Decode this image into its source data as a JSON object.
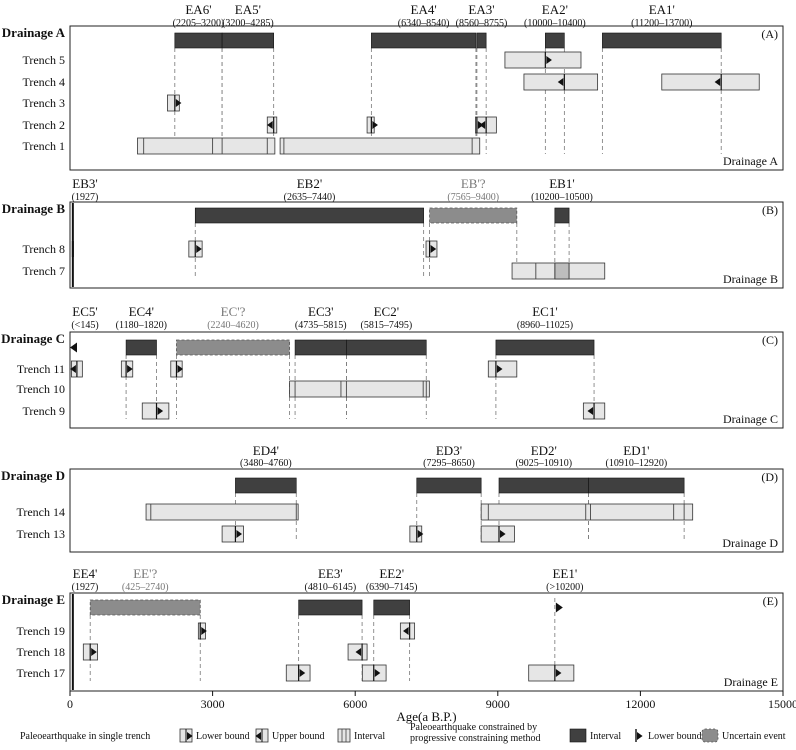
{
  "colors": {
    "interval_fill": "#404040",
    "uncertain_fill": "#8c8c8c",
    "trench_fill": "#e6e6e6",
    "stroke": "#222222",
    "guide": "#777777"
  },
  "chart_data": {
    "type": "timeline",
    "x_axis": {
      "label": "Age(a B.P.)",
      "min": 0,
      "max": 15000,
      "ticks": [
        0,
        3000,
        6000,
        9000,
        12000,
        15000
      ]
    },
    "panels": [
      {
        "id": "A",
        "drainage": "Drainage A",
        "tag": "(A)",
        "corner": "Drainage A",
        "events": [
          {
            "name": "EA6'",
            "range": "(2205–3200)",
            "start": 2205,
            "end": 3200,
            "kind": "interval"
          },
          {
            "name": "EA5'",
            "range": "(3200–4285)",
            "start": 3200,
            "end": 4285,
            "kind": "interval"
          },
          {
            "name": "EA4'",
            "range": "(6340–8540)",
            "start": 6340,
            "end": 8540,
            "kind": "interval"
          },
          {
            "name": "EA3'",
            "range": "(8560–8755)",
            "start": 8560,
            "end": 8755,
            "kind": "interval"
          },
          {
            "name": "EA2'",
            "range": "(10000–10400)",
            "start": 10000,
            "end": 10400,
            "kind": "interval"
          },
          {
            "name": "EA1'",
            "range": "(11200–13700)",
            "start": 11200,
            "end": 13700,
            "kind": "interval"
          }
        ],
        "trenches": [
          {
            "name": "Trench 5",
            "boxes": [
              {
                "start": 9150,
                "end": 10750
              }
            ],
            "marks": [
              {
                "x": 10000,
                "dir": "lower"
              }
            ]
          },
          {
            "name": "Trench 4",
            "boxes": [
              {
                "start": 9550,
                "end": 11100
              },
              {
                "start": 12450,
                "end": 14500
              }
            ],
            "marks": [
              {
                "x": 10400,
                "dir": "upper"
              },
              {
                "x": 13700,
                "dir": "upper"
              }
            ]
          },
          {
            "name": "Trench 3",
            "boxes": [
              {
                "start": 2050,
                "end": 2300
              }
            ],
            "marks": [
              {
                "x": 2205,
                "dir": "lower"
              }
            ]
          },
          {
            "name": "Trench 2",
            "boxes": [
              {
                "start": 4150,
                "end": 4350
              },
              {
                "start": 6250,
                "end": 6400
              },
              {
                "start": 8530,
                "end": 8970
              }
            ],
            "marks": [
              {
                "x": 4285,
                "dir": "upper"
              },
              {
                "x": 6340,
                "dir": "lower"
              },
              {
                "x": 8560,
                "dir": "lower"
              },
              {
                "x": 8755,
                "dir": "upper"
              }
            ]
          },
          {
            "name": "Trench 1",
            "boxes": [
              {
                "start": 1420,
                "end": 4310
              },
              {
                "start": 4420,
                "end": 8620
              }
            ],
            "inner": [
              1550,
              3000,
              3200,
              4150,
              4500,
              8460
            ]
          }
        ]
      },
      {
        "id": "B",
        "drainage": "Drainage B",
        "tag": "(B)",
        "corner": "Drainage B",
        "events": [
          {
            "name": "EB3'",
            "range": "(1927)",
            "start": 60,
            "end": 60,
            "kind": "interval"
          },
          {
            "name": "EB2'",
            "range": "(2635–7440)",
            "start": 2635,
            "end": 7440,
            "kind": "interval"
          },
          {
            "name": "EB'?",
            "range": "(7565–9400)",
            "start": 7565,
            "end": 9400,
            "kind": "uncertain"
          },
          {
            "name": "EB1'",
            "range": "(10200–10500)",
            "start": 10200,
            "end": 10500,
            "kind": "interval"
          }
        ],
        "trenches": [
          {
            "name": "Trench 8",
            "boxes": [
              {
                "start": 2500,
                "end": 2780
              },
              {
                "start": 7490,
                "end": 7720
              }
            ],
            "marks": [
              {
                "x": 2635,
                "dir": "lower"
              },
              {
                "x": 7565,
                "dir": "lower"
              }
            ],
            "ticks": [
              60
            ]
          },
          {
            "name": "Trench 7",
            "boxes": [
              {
                "start": 9300,
                "end": 11250
              }
            ],
            "inner": [
              9800,
              10200,
              10500
            ],
            "shade": [
              10200,
              10500
            ]
          }
        ]
      },
      {
        "id": "C",
        "drainage": "Drainage C",
        "tag": "(C)",
        "corner": "Drainage C",
        "events": [
          {
            "name": "EC5'",
            "range": "(<145)",
            "start": 0,
            "end": 0,
            "kind": "upper-arrow"
          },
          {
            "name": "EC4'",
            "range": "(1180–1820)",
            "start": 1180,
            "end": 1820,
            "kind": "interval"
          },
          {
            "name": "EC'?",
            "range": "(2240–4620)",
            "start": 2240,
            "end": 4620,
            "kind": "uncertain"
          },
          {
            "name": "EC3'",
            "range": "(4735–5815)",
            "start": 4735,
            "end": 5815,
            "kind": "interval"
          },
          {
            "name": "EC2'",
            "range": "(5815–7495)",
            "start": 5815,
            "end": 7495,
            "kind": "interval"
          },
          {
            "name": "EC1'",
            "range": "(8960–11025)",
            "start": 8960,
            "end": 11025,
            "kind": "interval"
          }
        ],
        "trenches": [
          {
            "name": "Trench 11",
            "boxes": [
              {
                "start": 30,
                "end": 260
              },
              {
                "start": 1080,
                "end": 1320
              },
              {
                "start": 2120,
                "end": 2360
              },
              {
                "start": 8800,
                "end": 9400
              }
            ],
            "marks": [
              {
                "x": 145,
                "dir": "upper"
              },
              {
                "x": 1180,
                "dir": "lower"
              },
              {
                "x": 2240,
                "dir": "lower"
              },
              {
                "x": 8960,
                "dir": "lower"
              }
            ]
          },
          {
            "name": "Trench 10",
            "boxes": [
              {
                "start": 4620,
                "end": 7560
              }
            ],
            "inner": [
              4735,
              5700,
              5815,
              7430,
              7495
            ]
          },
          {
            "name": "Trench 9",
            "boxes": [
              {
                "start": 1520,
                "end": 2080
              },
              {
                "start": 10800,
                "end": 11250
              }
            ],
            "marks": [
              {
                "x": 1820,
                "dir": "lower"
              },
              {
                "x": 11025,
                "dir": "upper"
              }
            ]
          }
        ]
      },
      {
        "id": "D",
        "drainage": "Drainage D",
        "tag": "(D)",
        "corner": "Drainage D",
        "events": [
          {
            "name": "ED4'",
            "range": "(3480–4760)",
            "start": 3480,
            "end": 4760,
            "kind": "interval"
          },
          {
            "name": "ED3'",
            "range": "(7295–8650)",
            "start": 7295,
            "end": 8650,
            "kind": "interval"
          },
          {
            "name": "ED2'",
            "range": "(9025–10910)",
            "start": 9025,
            "end": 10910,
            "kind": "interval"
          },
          {
            "name": "ED1'",
            "range": "(10910–12920)",
            "start": 10910,
            "end": 12920,
            "kind": "interval"
          }
        ],
        "trenches": [
          {
            "name": "Trench 14",
            "boxes": [
              {
                "start": 1600,
                "end": 4800
              },
              {
                "start": 8650,
                "end": 13100
              }
            ],
            "inner": [
              1700,
              4760,
              8800,
              10850,
              10950,
              12700,
              12920
            ]
          },
          {
            "name": "Trench 13",
            "boxes": [
              {
                "start": 3200,
                "end": 3650
              },
              {
                "start": 7150,
                "end": 7400
              },
              {
                "start": 8650,
                "end": 9350
              }
            ],
            "marks": [
              {
                "x": 3480,
                "dir": "lower"
              },
              {
                "x": 7295,
                "dir": "lower"
              },
              {
                "x": 9025,
                "dir": "lower"
              }
            ]
          }
        ]
      },
      {
        "id": "E",
        "drainage": "Drainage E",
        "tag": "(E)",
        "corner": "Drainage E",
        "events": [
          {
            "name": "EE4'",
            "range": "(1927)",
            "start": 60,
            "end": 60,
            "kind": "interval"
          },
          {
            "name": "EE'?",
            "range": "(425–2740)",
            "start": 425,
            "end": 2740,
            "kind": "uncertain"
          },
          {
            "name": "EE3'",
            "range": "(4810–6145)",
            "start": 4810,
            "end": 6145,
            "kind": "interval"
          },
          {
            "name": "EE2'",
            "range": "(6390–7145)",
            "start": 6390,
            "end": 7145,
            "kind": "interval"
          },
          {
            "name": "EE1'",
            "range": "(>10200)",
            "start": 10200,
            "end": 10200,
            "kind": "lower-arrow"
          }
        ],
        "trenches": [
          {
            "name": "Trench 19",
            "boxes": [
              {
                "start": 2700,
                "end": 2850
              },
              {
                "start": 6950,
                "end": 7250
              }
            ],
            "marks": [
              {
                "x": 2740,
                "dir": "lower"
              },
              {
                "x": 7145,
                "dir": "upper"
              }
            ]
          },
          {
            "name": "Trench 18",
            "boxes": [
              {
                "start": 280,
                "end": 580
              },
              {
                "start": 5850,
                "end": 6250
              }
            ],
            "marks": [
              {
                "x": 425,
                "dir": "lower"
              },
              {
                "x": 6145,
                "dir": "upper"
              }
            ]
          },
          {
            "name": "Trench 17",
            "boxes": [
              {
                "start": 4550,
                "end": 5050
              },
              {
                "start": 6150,
                "end": 6650
              },
              {
                "start": 9650,
                "end": 10600
              }
            ],
            "marks": [
              {
                "x": 4810,
                "dir": "lower"
              },
              {
                "x": 6390,
                "dir": "lower"
              },
              {
                "x": 10200,
                "dir": "lower"
              }
            ]
          }
        ]
      }
    ],
    "legend": {
      "single_title": "Paleoearthquake in single trench",
      "single_lower": "Lower bound",
      "single_upper": "Upper bound",
      "single_interval": "Interval",
      "constrained_title_1": "Paleoearthquake constrained by",
      "constrained_title_2": "progressive constraining method",
      "constrained_interval": "Interval",
      "constrained_lower": "Lower bound",
      "uncertain": "Uncertain event"
    }
  }
}
